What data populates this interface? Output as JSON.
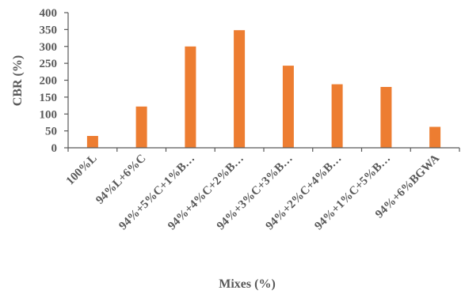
{
  "chart_data": {
    "type": "bar",
    "categories": [
      "100%L",
      "94%L+6%C",
      "94%+5%C+1%B…",
      "94%+4%C+2%B…",
      "94%+3%C+3%B…",
      "94%+2%C+4%B…",
      "94%+1%C+5%B…",
      "94%+6%BGWA"
    ],
    "values": [
      35,
      122,
      300,
      348,
      243,
      188,
      180,
      62
    ],
    "xlabel": "Mixes (%)",
    "ylabel": "CBR  (%)",
    "ylim": [
      0,
      400
    ],
    "yticks": [
      0,
      50,
      100,
      150,
      200,
      250,
      300,
      350,
      400
    ],
    "grid": false,
    "legend": "none",
    "colors": {
      "bar": "#ED7D31",
      "axis": "#595959",
      "text": "#595959"
    }
  }
}
